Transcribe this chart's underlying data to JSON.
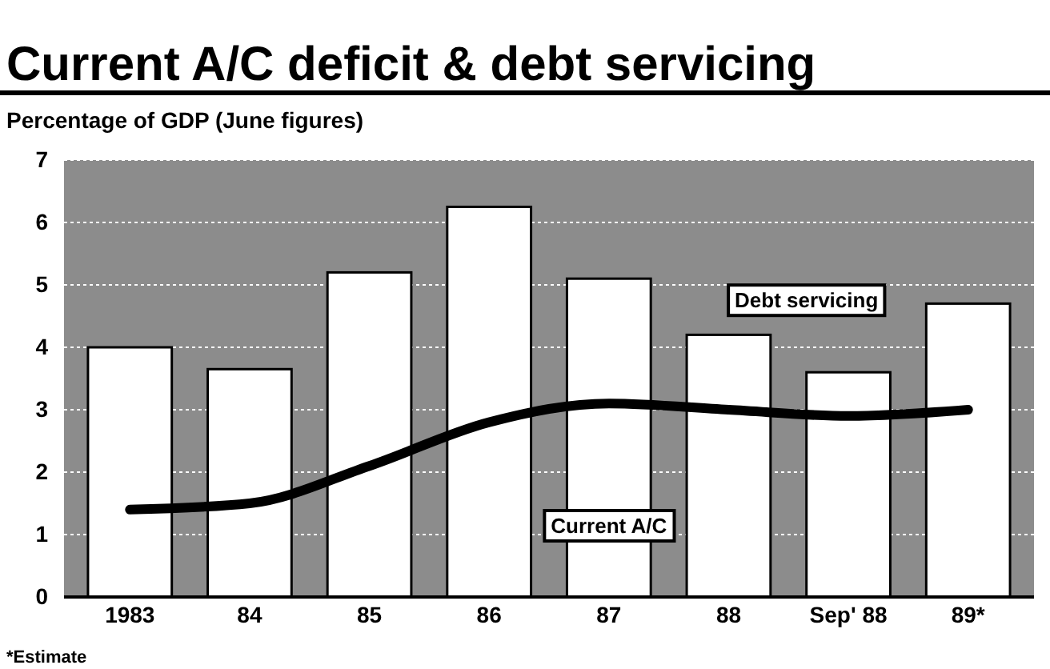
{
  "chart_data": {
    "type": "bar",
    "title": "Current A/C deficit & debt servicing",
    "subtitle": "Percentage of GDP (June figures)",
    "categories": [
      "1983",
      "84",
      "85",
      "86",
      "87",
      "88",
      "Sep' 88",
      "89*"
    ],
    "series": [
      {
        "name": "Current A/C",
        "color": "#ffffff",
        "values": [
          4.0,
          3.65,
          5.2,
          6.25,
          5.1,
          4.2,
          3.6,
          4.7
        ]
      },
      {
        "name": "Debt servicing",
        "type": "line",
        "color": "#000000",
        "values": [
          1.4,
          1.5,
          2.1,
          2.8,
          3.1,
          3.0,
          2.9,
          3.0
        ]
      }
    ],
    "ylim": [
      0,
      7
    ],
    "yticks": [
      0,
      1,
      2,
      3,
      4,
      5,
      6,
      7
    ],
    "grid": "y",
    "annotations": [
      "*Estimate"
    ]
  }
}
